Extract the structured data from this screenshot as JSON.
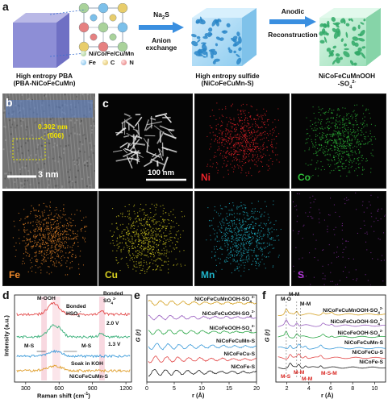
{
  "panel_a": {
    "label": "a",
    "legend": {
      "metals": "Ni/Co/Fe/Cu/Mn",
      "fe": "Fe",
      "c": "C",
      "n": "N"
    },
    "step1": {
      "top": "Na",
      "top_sub": "2",
      "top_after": "S",
      "bottom": "Anion exchange"
    },
    "step2": {
      "top": "Anodic",
      "bottom": "Reconstruction"
    },
    "cube1": {
      "line1": "High entropy PBA",
      "line2": "(PBA-NiCoFeCuMn)"
    },
    "cube2": {
      "line1": "High entropy sulfide",
      "line2": "(NiCoFeCuMn-S)"
    },
    "cube3": {
      "line1": "NiCoFeCuMnOOH",
      "line2": "-SO",
      "line2_sub": "4",
      "line2_sup": "2-"
    }
  },
  "panel_b": {
    "label": "b",
    "spacing": "0.302 nm",
    "plane": "(006)",
    "scale": "3 nm"
  },
  "panel_c": {
    "label": "c",
    "scale": "100 nm",
    "maps": [
      {
        "element": "Ni",
        "color": "#e8232a"
      },
      {
        "element": "Co",
        "color": "#2fbf3a"
      },
      {
        "element": "Fe",
        "color": "#f08a2a"
      },
      {
        "element": "Cu",
        "color": "#d8d020"
      },
      {
        "element": "Mn",
        "color": "#1fb3c8"
      },
      {
        "element": "S",
        "color": "#b33ad8"
      }
    ]
  },
  "panel_d": {
    "label": "d",
    "ylabel": "Intensity (a.u.)",
    "xlabel": "Raman shift (cm",
    "xlabel_sup": "-1",
    "xlabel_end": ")",
    "xticks": [
      "300",
      "600",
      "900",
      "1200"
    ],
    "annotations": {
      "mooh": "M-OOH",
      "bonded_hso": "Bonded",
      "bonded_hso2": "HSO",
      "bonded_hso2_sub": "4",
      "bonded_hso2_sup": "-",
      "bonded_so": "Bonded",
      "bonded_so2": "SO",
      "bonded_so2_sub": "4",
      "bonded_so2_sup": "2-",
      "ms_left": "M-S",
      "ms_right": "M-S"
    },
    "traces": [
      {
        "label": "2.0 V",
        "color": "#e34a4a"
      },
      {
        "label": "1.3 V",
        "color": "#3ab07a"
      },
      {
        "label": "Soak in KOH",
        "color": "#3a9ad9"
      },
      {
        "label": "NiCoFeCuMn-S",
        "color": "#e0a030"
      }
    ]
  },
  "panel_e": {
    "label": "e",
    "ylabel": "G (r)",
    "xlabel": "r (Å)",
    "xticks": [
      "0",
      "5",
      "10",
      "15",
      "20"
    ],
    "traces": [
      {
        "label": "NiCoFeCuMnOOH-SO",
        "sub": "4",
        "sup": "2-",
        "color": "#d4a020"
      },
      {
        "label": "NiCoFeCuOOH-SO",
        "sub": "4",
        "sup": "2-",
        "color": "#9a5fc0"
      },
      {
        "label": "NiCoFeOOH-SO",
        "sub": "4",
        "sup": "2-",
        "color": "#2fa84a"
      },
      {
        "label": "NiCoFeCuMn-S",
        "sub": "",
        "sup": "",
        "color": "#3a9ad9"
      },
      {
        "label": "NiCoFeCu-S",
        "sub": "",
        "sup": "",
        "color": "#e34a4a"
      },
      {
        "label": "NiCoFe-S",
        "sub": "",
        "sup": "",
        "color": "#222222"
      }
    ]
  },
  "panel_f": {
    "label": "f",
    "ylabel": "G (r)",
    "xlabel": "r (Å)",
    "xticks": [
      "2",
      "4",
      "6",
      "8",
      "10"
    ],
    "annotations": {
      "mo": "M-O",
      "mm1": "M-M",
      "mm2": "M-M",
      "ms": "M-S",
      "mm3": "M-M",
      "mm4": "M-M",
      "msm": "M-S-M"
    },
    "traces": [
      {
        "label": "NiCoFeCuMnOOH-SO",
        "sub": "4",
        "sup": "2-",
        "color": "#d4a020"
      },
      {
        "label": "NiCoFeCuOOH-SO",
        "sub": "4",
        "sup": "2-",
        "color": "#9a5fc0"
      },
      {
        "label": "NiCoFeOOH-SO",
        "sub": "4",
        "sup": "2-",
        "color": "#2fa84a"
      },
      {
        "label": "NiCoFeCuMn-S",
        "sub": "",
        "sup": "",
        "color": "#3a9ad9"
      },
      {
        "label": "NiCoFeCu-S",
        "sub": "",
        "sup": "",
        "color": "#e34a4a"
      },
      {
        "label": "NiCoFe-S",
        "sub": "",
        "sup": "",
        "color": "#222222"
      }
    ]
  }
}
